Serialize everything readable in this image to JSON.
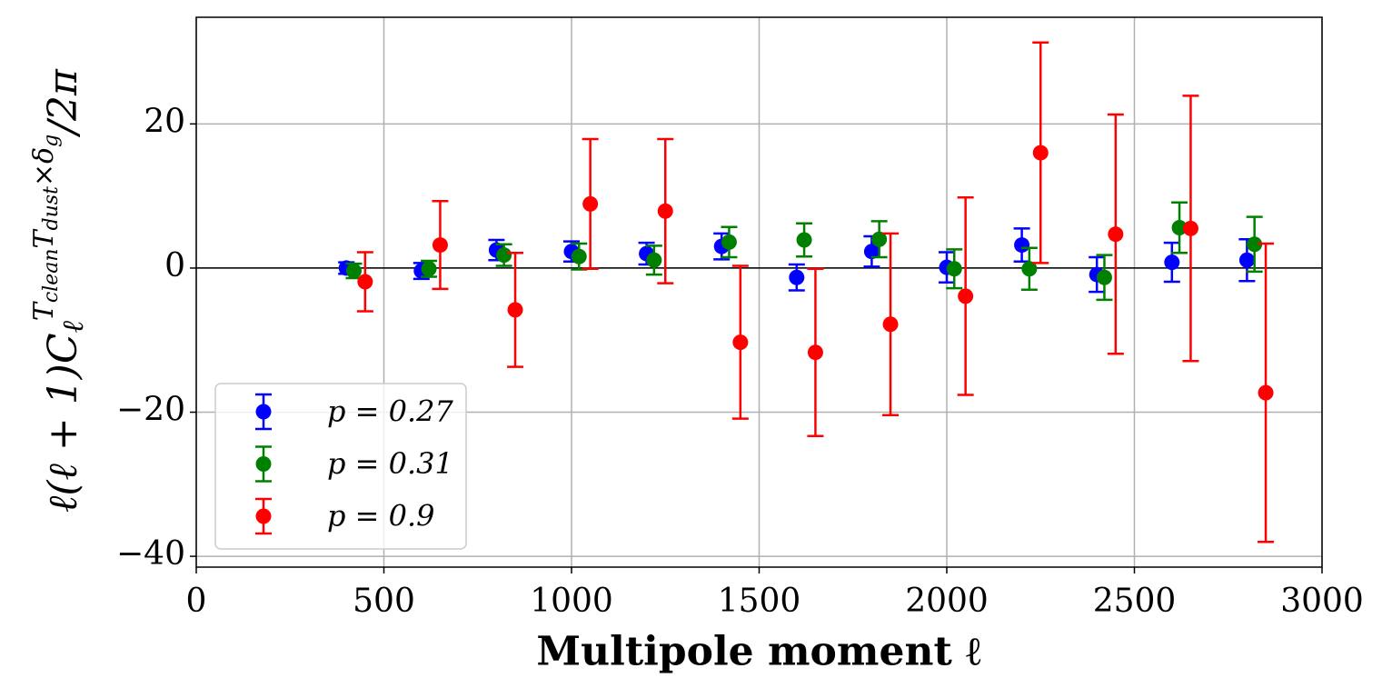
{
  "chart_data": {
    "type": "errorbar",
    "x_label": "Multipole moment ℓ",
    "y_label": [
      "ℓ(ℓ + 1)C",
      "ℓ",
      "T",
      "clean",
      "T",
      "dust",
      "×δ",
      "g",
      "/2π"
    ],
    "xlim": [
      0,
      3000
    ],
    "ylim": [
      -41.5,
      34.8
    ],
    "xticks": [
      0,
      500,
      1000,
      1500,
      2000,
      2500,
      3000
    ],
    "yticks": [
      {
        "value": -40,
        "label": "−40"
      },
      {
        "value": -20,
        "label": "−20"
      },
      0,
      20
    ],
    "grid": true,
    "axhline": 0,
    "legend": "lower left",
    "series": [
      {
        "name": "p = 0.27",
        "color": "#0000ff",
        "x": [
          400,
          600,
          800,
          1000,
          1200,
          1400,
          1600,
          1800,
          2000,
          2200,
          2400,
          2600,
          2800
        ],
        "values": [
          0,
          -0.4,
          2.5,
          2.3,
          2.0,
          3.0,
          -1.3,
          2.3,
          0.1,
          3.2,
          -0.9,
          0.8,
          1.1
        ],
        "errors": [
          0.8,
          1.1,
          1.4,
          1.4,
          1.5,
          1.8,
          1.8,
          2.1,
          2.1,
          2.3,
          2.4,
          2.7,
          2.9
        ]
      },
      {
        "name": "p = 0.31",
        "color": "#008000",
        "x": [
          420,
          620,
          820,
          1020,
          1220,
          1420,
          1620,
          1820,
          2020,
          2220,
          2420,
          2620,
          2820
        ],
        "values": [
          -0.4,
          -0.1,
          1.8,
          1.6,
          1.1,
          3.6,
          3.9,
          4.0,
          -0.1,
          -0.1,
          -1.3,
          5.6,
          3.3
        ],
        "errors": [
          1.0,
          1.1,
          1.5,
          1.8,
          2.0,
          2.1,
          2.3,
          2.5,
          2.7,
          2.9,
          3.1,
          3.5,
          3.8
        ]
      },
      {
        "name": "p = 0.9",
        "color": "#ff0000",
        "x": [
          450,
          650,
          850,
          1050,
          1250,
          1450,
          1650,
          1850,
          2050,
          2250,
          2450,
          2650,
          2850
        ],
        "values": [
          -1.9,
          3.2,
          -5.8,
          8.9,
          7.9,
          -10.3,
          -11.7,
          -7.8,
          -3.9,
          16.0,
          4.7,
          5.5,
          -17.3
        ],
        "errors": [
          4.1,
          6.1,
          7.9,
          9.0,
          10.0,
          10.6,
          11.6,
          12.6,
          13.7,
          15.3,
          16.6,
          18.4,
          20.7
        ]
      }
    ]
  }
}
